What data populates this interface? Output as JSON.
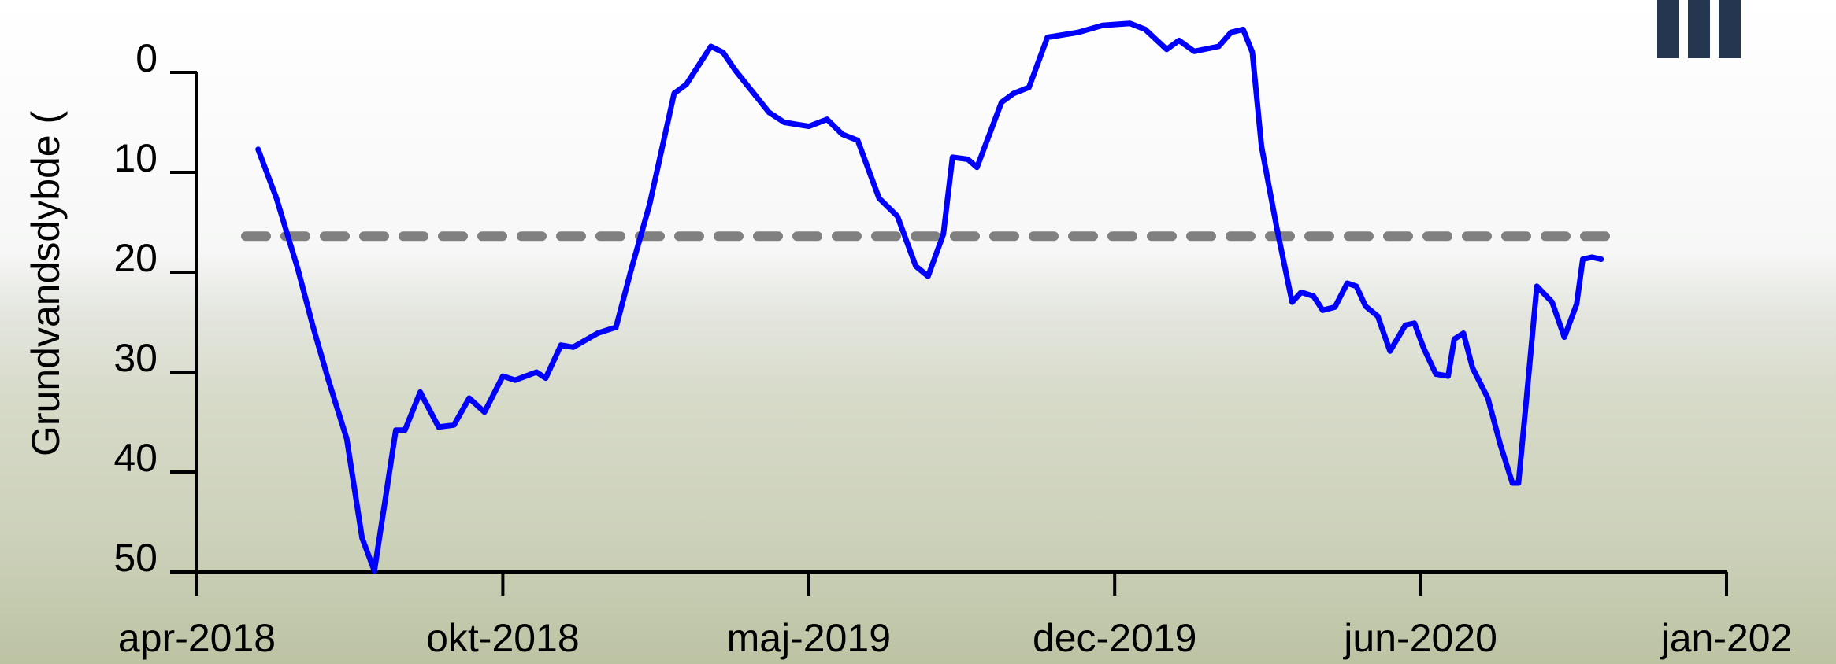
{
  "chart_data": {
    "type": "line",
    "ylabel": "Grundvandsdybde (",
    "x": [
      0.2,
      0.26,
      0.33,
      0.38,
      0.43,
      0.49,
      0.54,
      0.58,
      0.62,
      0.65,
      0.68,
      0.73,
      0.79,
      0.84,
      0.89,
      0.94,
      1.0,
      1.04,
      1.11,
      1.14,
      1.19,
      1.23,
      1.31,
      1.37,
      1.42,
      1.48,
      1.56,
      1.6,
      1.68,
      1.72,
      1.76,
      1.87,
      1.92,
      2.0,
      2.06,
      2.11,
      2.16,
      2.23,
      2.29,
      2.35,
      2.39,
      2.44,
      2.47,
      2.52,
      2.55,
      2.63,
      2.67,
      2.72,
      2.78,
      2.88,
      2.96,
      3.05,
      3.1,
      3.17,
      3.21,
      3.26,
      3.34,
      3.38,
      3.42,
      3.45,
      3.48,
      3.53,
      3.58,
      3.61,
      3.65,
      3.68,
      3.72,
      3.76,
      3.79,
      3.82,
      3.86,
      3.9,
      3.95,
      3.98,
      4.01,
      4.05,
      4.09,
      4.11,
      4.14,
      4.17,
      4.22,
      4.26,
      4.3,
      4.32,
      4.35,
      4.38,
      4.43,
      4.47,
      4.51,
      4.53,
      4.56,
      4.59
    ],
    "series": [
      {
        "color": "#0000ff",
        "values": [
          7.7,
          12.6,
          19.7,
          25.5,
          30.8,
          36.7,
          46.6,
          49.9,
          41.9,
          35.8,
          35.8,
          32.0,
          35.5,
          35.3,
          32.6,
          34.0,
          30.4,
          30.8,
          30.0,
          30.6,
          27.3,
          27.5,
          26.1,
          25.5,
          19.7,
          13.2,
          2.1,
          1.2,
          -2.6,
          -2.0,
          -0.2,
          4.0,
          5.0,
          5.4,
          4.7,
          6.2,
          6.8,
          12.6,
          14.4,
          19.4,
          20.4,
          16.2,
          8.5,
          8.7,
          9.5,
          3.0,
          2.1,
          1.5,
          -3.5,
          -4.0,
          -4.7,
          -4.9,
          -4.3,
          -2.3,
          -3.2,
          -2.1,
          -2.6,
          -4.0,
          -4.3,
          -2.0,
          7.4,
          15.6,
          23.0,
          22.0,
          22.4,
          23.8,
          23.5,
          21.1,
          21.4,
          23.4,
          24.4,
          27.9,
          25.3,
          25.1,
          27.6,
          30.2,
          30.4,
          26.7,
          26.1,
          29.6,
          32.6,
          37.2,
          41.1,
          41.1,
          31.4,
          21.4,
          23.0,
          26.5,
          23.2,
          18.7,
          18.5,
          18.7
        ]
      }
    ],
    "reference_line": {
      "value": 16.4,
      "color": "#808080"
    },
    "ylim": [
      0,
      50
    ],
    "yticks": [
      0,
      10,
      20,
      30,
      40,
      50
    ],
    "y_inverted": true,
    "xlim": [
      0,
      5
    ],
    "xticks": [
      {
        "value": 0,
        "label": "apr-2018"
      },
      {
        "value": 1,
        "label": "okt-2018"
      },
      {
        "value": 2,
        "label": "maj-2019"
      },
      {
        "value": 3,
        "label": "dec-2019"
      },
      {
        "value": 4,
        "label": "jun-2020"
      },
      {
        "value": 5,
        "label": "jan-202"
      }
    ]
  }
}
